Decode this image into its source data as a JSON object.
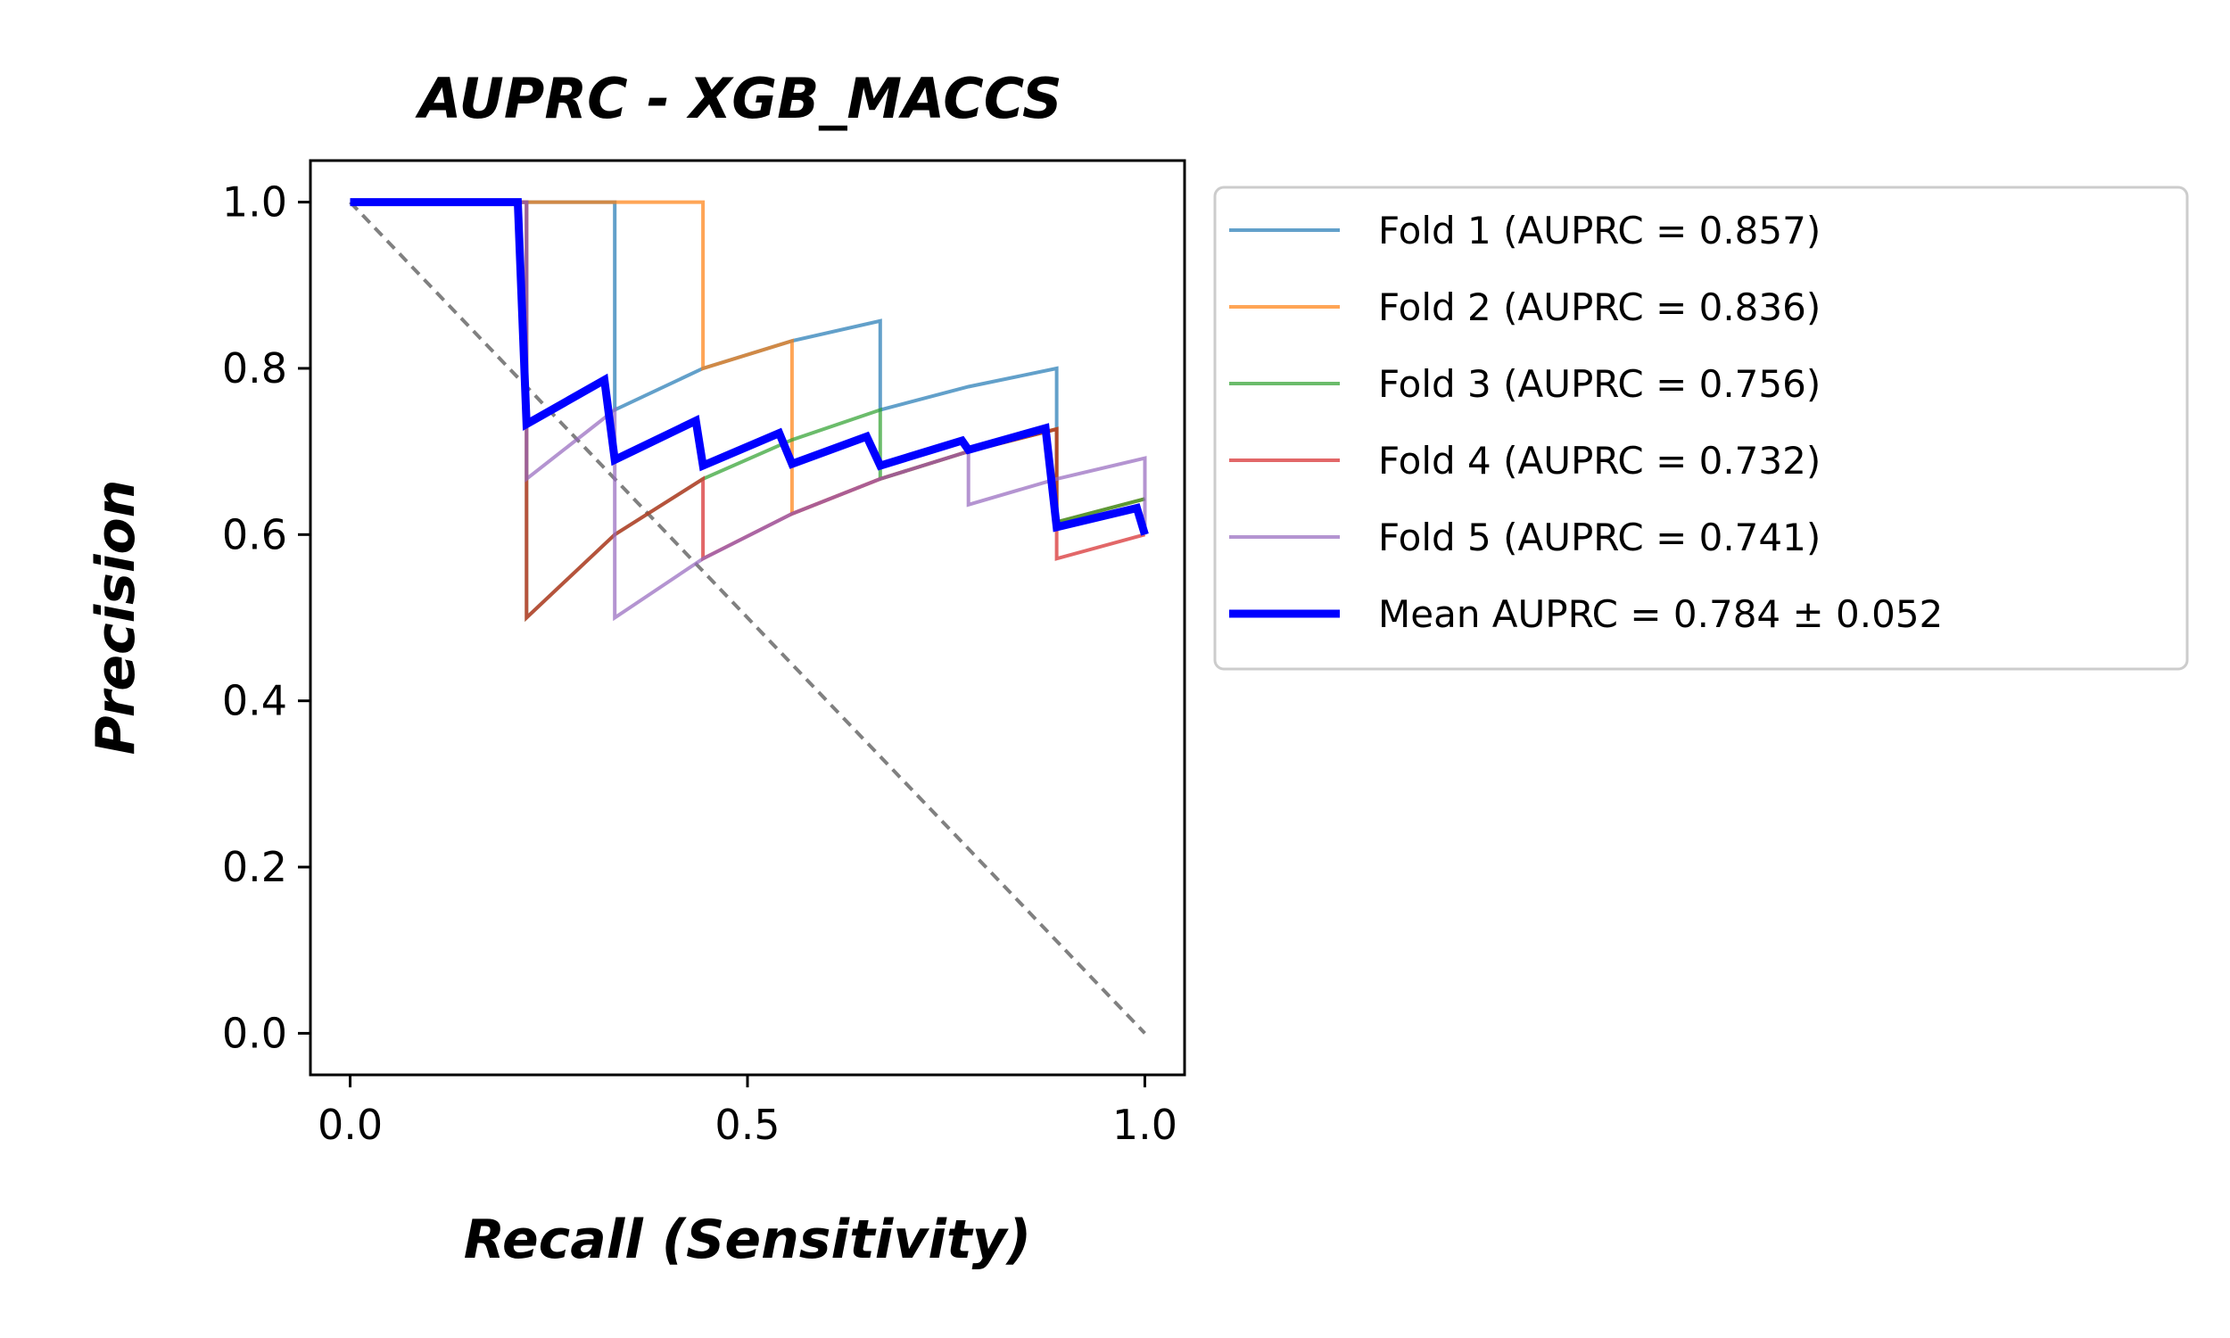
{
  "chart_data": {
    "type": "line",
    "title": "AUPRC - XGB_MACCS",
    "xlabel": "Recall (Sensitivity)",
    "ylabel": "Precision",
    "xlim": [
      -0.05,
      1.05
    ],
    "ylim": [
      -0.05,
      1.05
    ],
    "xticks": [
      {
        "value": 0.0,
        "label": "0.0"
      },
      {
        "value": 0.5,
        "label": "0.5"
      },
      {
        "value": 1.0,
        "label": "1.0"
      }
    ],
    "yticks": [
      {
        "value": 0.0,
        "label": "0.0"
      },
      {
        "value": 0.2,
        "label": "0.2"
      },
      {
        "value": 0.4,
        "label": "0.4"
      },
      {
        "value": 0.6,
        "label": "0.6"
      },
      {
        "value": 0.8,
        "label": "0.8"
      },
      {
        "value": 1.0,
        "label": "1.0"
      }
    ],
    "grid": false,
    "legend_position": "outside-right-top",
    "reference_line": {
      "points": [
        [
          0,
          1
        ],
        [
          1,
          0
        ]
      ],
      "style": "dashed",
      "color": "#808080"
    },
    "series": [
      {
        "name": "Fold 1 (AUPRC = 0.857)",
        "color": "#1f77b4",
        "points": [
          [
            0,
            1
          ],
          [
            0.111,
            1
          ],
          [
            0.222,
            1
          ],
          [
            0.333,
            1
          ],
          [
            0.333,
            0.75
          ],
          [
            0.444,
            0.8
          ],
          [
            0.556,
            0.833
          ],
          [
            0.667,
            0.857
          ],
          [
            0.667,
            0.75
          ],
          [
            0.778,
            0.778
          ],
          [
            0.889,
            0.8
          ],
          [
            0.889,
            0.615
          ],
          [
            1,
            0.643
          ]
        ]
      },
      {
        "name": "Fold 2 (AUPRC = 0.836)",
        "color": "#ff7f0e",
        "points": [
          [
            0,
            1
          ],
          [
            0.222,
            1
          ],
          [
            0.333,
            1
          ],
          [
            0.444,
            1
          ],
          [
            0.444,
            0.8
          ],
          [
            0.556,
            0.833
          ],
          [
            0.556,
            0.625
          ],
          [
            0.667,
            0.667
          ],
          [
            0.778,
            0.7
          ],
          [
            0.889,
            0.727
          ],
          [
            0.889,
            0.615
          ],
          [
            1,
            0.643
          ]
        ]
      },
      {
        "name": "Fold 3 (AUPRC = 0.756)",
        "color": "#2ca02c",
        "points": [
          [
            0,
            1
          ],
          [
            0.222,
            1
          ],
          [
            0.222,
            0.5
          ],
          [
            0.333,
            0.6
          ],
          [
            0.444,
            0.667
          ],
          [
            0.556,
            0.714
          ],
          [
            0.667,
            0.75
          ],
          [
            0.667,
            0.667
          ],
          [
            0.778,
            0.7
          ],
          [
            0.889,
            0.727
          ],
          [
            0.889,
            0.615
          ],
          [
            1,
            0.643
          ]
        ]
      },
      {
        "name": "Fold 4 (AUPRC = 0.732)",
        "color": "#d62728",
        "points": [
          [
            0,
            1
          ],
          [
            0.222,
            1
          ],
          [
            0.222,
            0.5
          ],
          [
            0.333,
            0.6
          ],
          [
            0.444,
            0.667
          ],
          [
            0.444,
            0.571
          ],
          [
            0.556,
            0.625
          ],
          [
            0.667,
            0.667
          ],
          [
            0.778,
            0.7
          ],
          [
            0.889,
            0.727
          ],
          [
            0.889,
            0.571
          ],
          [
            1,
            0.6
          ]
        ]
      },
      {
        "name": "Fold 5 (AUPRC = 0.741)",
        "color": "#9467bd",
        "points": [
          [
            0,
            1
          ],
          [
            0.222,
            1
          ],
          [
            0.222,
            0.667
          ],
          [
            0.333,
            0.75
          ],
          [
            0.333,
            0.5
          ],
          [
            0.444,
            0.571
          ],
          [
            0.556,
            0.625
          ],
          [
            0.667,
            0.667
          ],
          [
            0.778,
            0.7
          ],
          [
            0.778,
            0.636
          ],
          [
            0.889,
            0.667
          ],
          [
            1,
            0.692
          ],
          [
            1,
            0.6
          ]
        ]
      },
      {
        "name": "Mean AUPRC = 0.784 ± 0.052",
        "color": "#0000ff",
        "points": [
          [
            0,
            1
          ],
          [
            0.211,
            1
          ],
          [
            0.222,
            0.733
          ],
          [
            0.32,
            0.786
          ],
          [
            0.333,
            0.69
          ],
          [
            0.435,
            0.737
          ],
          [
            0.444,
            0.683
          ],
          [
            0.54,
            0.722
          ],
          [
            0.556,
            0.685
          ],
          [
            0.65,
            0.718
          ],
          [
            0.667,
            0.683
          ],
          [
            0.77,
            0.713
          ],
          [
            0.778,
            0.702
          ],
          [
            0.875,
            0.728
          ],
          [
            0.889,
            0.609
          ],
          [
            0.99,
            0.632
          ],
          [
            1,
            0.6
          ]
        ]
      }
    ]
  }
}
